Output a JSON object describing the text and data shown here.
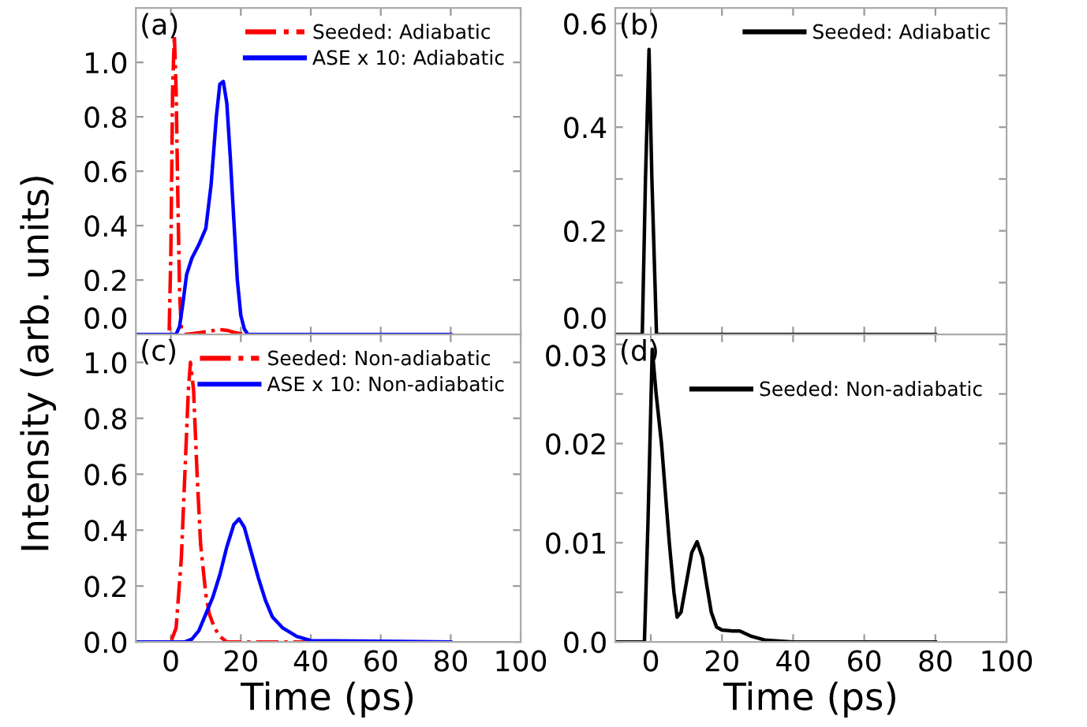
{
  "chart_data": [
    {
      "type": "line",
      "annotations": [
        "(a)"
      ],
      "ylabel": "Intensity (arb. units)",
      "xlim": [
        -10,
        100
      ],
      "ylim": [
        0,
        1.2
      ],
      "xticks": [
        {
          "value": 0,
          "label": null
        },
        {
          "value": 20,
          "label": null
        },
        {
          "value": 40,
          "label": null
        },
        {
          "value": 60,
          "label": null
        },
        {
          "value": 80,
          "label": null
        },
        {
          "value": 100,
          "label": null
        }
      ],
      "yticks": [
        {
          "value": 0,
          "label": "0.0"
        },
        0.2,
        0.4,
        0.6,
        0.8,
        {
          "value": 1,
          "label": "1.0"
        }
      ],
      "tick_labels": "y",
      "legend": "top right",
      "series": [
        {
          "name": "Seeded: Adiabatic",
          "color": "#ff0000",
          "line_style": "dashdot",
          "x": [
            -10,
            -0.5,
            0,
            0.5,
            1,
            1.5,
            2,
            2.5,
            3,
            4,
            6,
            8,
            10,
            12,
            14,
            16,
            18,
            20,
            22
          ],
          "values": [
            0,
            0,
            0.3,
            0.9,
            1.1,
            0.9,
            0.5,
            0.15,
            0.02,
            0,
            0.003,
            0.006,
            0.01,
            0.014,
            0.018,
            0.015,
            0.008,
            0.002,
            0
          ]
        },
        {
          "name": "ASE x 10: Adiabatic",
          "color": "#0000ff",
          "line_style": "solid",
          "x": [
            -10,
            1.5,
            2.5,
            3.5,
            4.5,
            6,
            8,
            10,
            11.5,
            13,
            14,
            15,
            16,
            17,
            18,
            19,
            20,
            21,
            22,
            25,
            80
          ],
          "values": [
            0,
            0,
            0.03,
            0.12,
            0.22,
            0.28,
            0.33,
            0.39,
            0.55,
            0.8,
            0.92,
            0.93,
            0.85,
            0.65,
            0.42,
            0.2,
            0.07,
            0.02,
            0,
            0,
            0
          ]
        }
      ]
    },
    {
      "type": "line",
      "annotations": [
        "(b)"
      ],
      "xlim": [
        -10,
        100
      ],
      "ylim": [
        0,
        0.63
      ],
      "xticks": [
        {
          "value": 0,
          "label": null
        },
        {
          "value": 20,
          "label": null
        },
        {
          "value": 40,
          "label": null
        },
        {
          "value": 60,
          "label": null
        },
        {
          "value": 80,
          "label": null
        },
        {
          "value": 100,
          "label": null
        }
      ],
      "yticks": [
        {
          "value": 0,
          "label": "0.0"
        },
        {
          "value": 0.1,
          "label": null
        },
        0.2,
        {
          "value": 0.3,
          "label": null
        },
        0.4,
        {
          "value": 0.5,
          "label": null
        },
        0.6
      ],
      "tick_labels": "y",
      "legend": "top right",
      "series": [
        {
          "name": "Seeded: Adiabatic",
          "color": "#000000",
          "line_style": "solid",
          "x": [
            -10,
            -2.4,
            -1.5,
            -0.5,
            0.3,
            1.6,
            80
          ],
          "values": [
            0,
            0,
            0.3,
            0.55,
            0.3,
            0,
            0
          ]
        }
      ]
    },
    {
      "type": "line",
      "annotations": [
        "(c)"
      ],
      "xlabel": "Time (ps)",
      "xlim": [
        -10,
        100
      ],
      "ylim": [
        0,
        1.1
      ],
      "xticks": [
        0,
        20,
        40,
        60,
        80,
        100
      ],
      "yticks": [
        {
          "value": 0,
          "label": "0.0"
        },
        0.2,
        0.4,
        0.6,
        0.8,
        {
          "value": 1,
          "label": "1.0"
        }
      ],
      "legend": "top right",
      "series": [
        {
          "name": "Seeded: Non-adiabatic",
          "color": "#ff0000",
          "line_style": "dashdot",
          "x": [
            -10,
            0,
            1.5,
            3,
            4,
            5,
            5.6,
            6.5,
            7.5,
            8.5,
            10,
            11,
            12.5,
            14,
            16,
            20,
            80
          ],
          "values": [
            0,
            0,
            0.05,
            0.3,
            0.6,
            0.9,
            1.0,
            0.9,
            0.6,
            0.35,
            0.17,
            0.1,
            0.05,
            0.02,
            0,
            0,
            0
          ]
        },
        {
          "name": "ASE x 10: Non-adiabatic",
          "color": "#0000ff",
          "line_style": "solid",
          "x": [
            -10,
            4,
            6,
            8,
            10,
            12,
            14,
            16,
            18,
            19.5,
            21,
            23,
            25,
            27,
            29,
            32,
            36,
            40,
            80
          ],
          "values": [
            0,
            0,
            0.01,
            0.04,
            0.1,
            0.16,
            0.24,
            0.34,
            0.42,
            0.44,
            0.41,
            0.32,
            0.23,
            0.15,
            0.09,
            0.05,
            0.02,
            0.005,
            0
          ]
        }
      ]
    },
    {
      "type": "line",
      "annotations": [
        "(d)"
      ],
      "xlabel": "Time (ps)",
      "xlim": [
        -10,
        100
      ],
      "ylim": [
        0,
        0.031
      ],
      "xticks": [
        0,
        20,
        40,
        60,
        80,
        100
      ],
      "yticks": [
        {
          "value": 0,
          "label": "0.0"
        },
        {
          "value": 0.005,
          "label": null
        },
        0.01,
        {
          "value": 0.015,
          "label": null
        },
        0.02,
        {
          "value": 0.025,
          "label": null
        },
        0.03
      ],
      "legend": "upper right",
      "series": [
        {
          "name": "Seeded: Non-adiabatic",
          "color": "#000000",
          "line_style": "solid",
          "x": [
            -10,
            -1.8,
            -0.8,
            0.4,
            1.5,
            3,
            5.2,
            6.5,
            7.4,
            8.5,
            10,
            11.5,
            13,
            14.5,
            15.6,
            17,
            18.5,
            20,
            23,
            25,
            28,
            32,
            40,
            80
          ],
          "values": [
            0,
            0,
            0.012,
            0.0295,
            0.025,
            0.02,
            0.01,
            0.005,
            0.0025,
            0.003,
            0.006,
            0.009,
            0.0101,
            0.0085,
            0.006,
            0.003,
            0.0015,
            0.0012,
            0.0011,
            0.0011,
            0.0006,
            0.0002,
            0,
            0
          ]
        }
      ]
    }
  ]
}
